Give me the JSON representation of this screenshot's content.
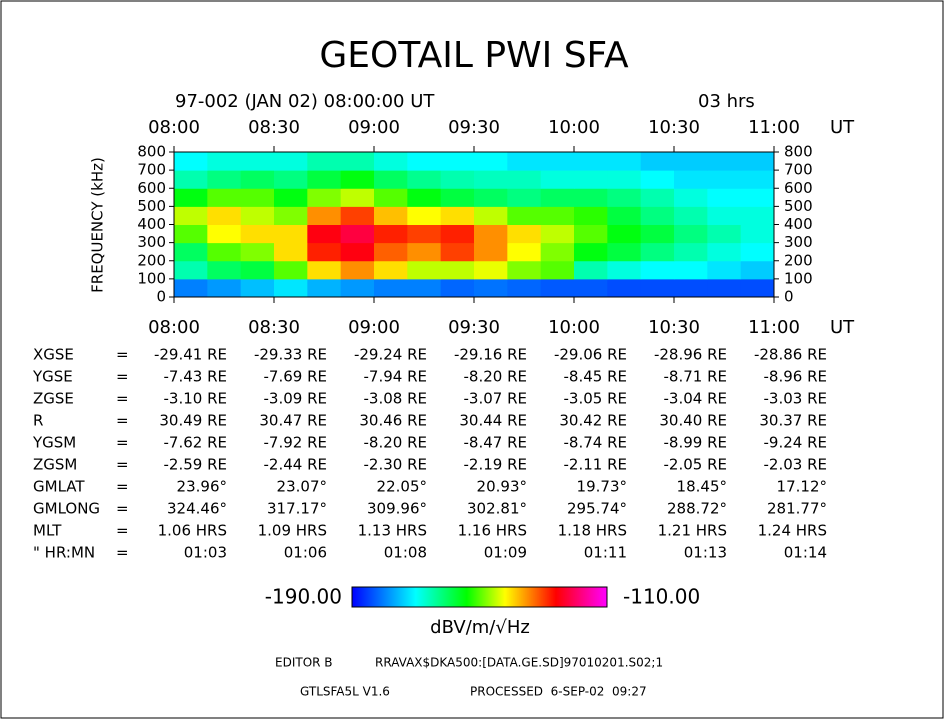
{
  "chart_data": {
    "type": "heatmap",
    "title": "GEOTAIL PWI SFA",
    "subtitle": "97-002 (JAN 02) 08:00:00 UT",
    "duration": "03 hrs",
    "xunit": "UT",
    "ylabel": "FREQUENCY (kHz)",
    "xticks": [
      "08:00",
      "08:30",
      "09:00",
      "09:30",
      "10:00",
      "10:30",
      "11:00"
    ],
    "ylim": [
      0,
      800
    ],
    "yticks": [
      0,
      100,
      200,
      300,
      400,
      500,
      600,
      700,
      800
    ],
    "z": [
      [
        -180,
        -178,
        -175,
        -172,
        -176,
        -178,
        -180,
        -180,
        -182,
        -181,
        -182,
        -183,
        -183,
        -184,
        -184,
        -184,
        -184,
        -184
      ],
      [
        -165,
        -160,
        -158,
        -150,
        -140,
        -135,
        -140,
        -145,
        -145,
        -143,
        -148,
        -150,
        -165,
        -168,
        -170,
        -170,
        -172,
        -174
      ],
      [
        -160,
        -150,
        -148,
        -140,
        -128,
        -125,
        -132,
        -135,
        -130,
        -135,
        -142,
        -148,
        -155,
        -158,
        -162,
        -165,
        -168,
        -170
      ],
      [
        -150,
        -142,
        -140,
        -140,
        -125,
        -122,
        -128,
        -130,
        -128,
        -135,
        -140,
        -145,
        -150,
        -155,
        -158,
        -162,
        -165,
        -168
      ],
      [
        -145,
        -140,
        -145,
        -148,
        -135,
        -130,
        -138,
        -142,
        -140,
        -145,
        -150,
        -150,
        -152,
        -158,
        -162,
        -165,
        -168,
        -168
      ],
      [
        -155,
        -150,
        -150,
        -155,
        -148,
        -145,
        -150,
        -155,
        -158,
        -160,
        -162,
        -160,
        -160,
        -162,
        -165,
        -168,
        -170,
        -170
      ],
      [
        -165,
        -162,
        -160,
        -162,
        -158,
        -155,
        -160,
        -163,
        -165,
        -166,
        -166,
        -168,
        -168,
        -168,
        -170,
        -172,
        -172,
        -172
      ],
      [
        -170,
        -168,
        -168,
        -168,
        -165,
        -165,
        -168,
        -170,
        -170,
        -170,
        -172,
        -172,
        -172,
        -172,
        -174,
        -174,
        -174,
        -174
      ]
    ],
    "zlim": [
      -190,
      -110
    ],
    "zticks": [
      {
        "value": -190,
        "label": "-190.00"
      },
      {
        "value": -110,
        "label": "-110.00"
      }
    ],
    "zlabel": "dBV/m/√Hz"
  },
  "orbit": {
    "rows": [
      {
        "label": "XGSE",
        "eq": "=",
        "cells": [
          "-29.41 RE",
          "-29.33 RE",
          "-29.24 RE",
          "-29.16 RE",
          "-29.06 RE",
          "-28.96 RE",
          "-28.86 RE"
        ]
      },
      {
        "label": "YGSE",
        "eq": "=",
        "cells": [
          "-7.43 RE",
          "-7.69 RE",
          "-7.94 RE",
          "-8.20 RE",
          "-8.45 RE",
          "-8.71 RE",
          "-8.96 RE"
        ]
      },
      {
        "label": "ZGSE",
        "eq": "=",
        "cells": [
          "-3.10 RE",
          "-3.09 RE",
          "-3.08 RE",
          "-3.07 RE",
          "-3.05 RE",
          "-3.04 RE",
          "-3.03 RE"
        ]
      },
      {
        "label": "R",
        "eq": "=",
        "cells": [
          "30.49 RE",
          "30.47 RE",
          "30.46 RE",
          "30.44 RE",
          "30.42 RE",
          "30.40 RE",
          "30.37 RE"
        ]
      },
      {
        "label": "YGSM",
        "eq": "=",
        "cells": [
          "-7.62 RE",
          "-7.92 RE",
          "-8.20 RE",
          "-8.47 RE",
          "-8.74 RE",
          "-8.99 RE",
          "-9.24 RE"
        ]
      },
      {
        "label": "ZGSM",
        "eq": "=",
        "cells": [
          "-2.59 RE",
          "-2.44 RE",
          "-2.30 RE",
          "-2.19 RE",
          "-2.11 RE",
          "-2.05 RE",
          "-2.03 RE"
        ]
      },
      {
        "label": "GMLAT",
        "eq": "=",
        "cells": [
          "23.96°",
          "23.07°",
          "22.05°",
          "20.93°",
          "19.73°",
          "18.45°",
          "17.12°"
        ]
      },
      {
        "label": "GMLONG",
        "eq": "=",
        "cells": [
          "324.46°",
          "317.17°",
          "309.96°",
          "302.81°",
          "295.74°",
          "288.72°",
          "281.77°"
        ]
      },
      {
        "label": "MLT",
        "eq": "=",
        "cells": [
          "1.06 HRS",
          "1.09 HRS",
          "1.13 HRS",
          "1.16 HRS",
          "1.18 HRS",
          "1.21 HRS",
          "1.24 HRS"
        ]
      },
      {
        "label": "\" HR:MN",
        "eq": "=",
        "cells": [
          "01:03",
          "01:06",
          "01:08",
          "01:09",
          "01:11",
          "01:13",
          "01:14"
        ]
      }
    ]
  },
  "footer": {
    "editor": "EDITOR B",
    "file": "RRAVAX$DKA500:[DATA.GE.SD]97010201.S02;1",
    "version": "GTLSFA5L V1.6",
    "processed": "PROCESSED  6-SEP-02  09:27"
  }
}
